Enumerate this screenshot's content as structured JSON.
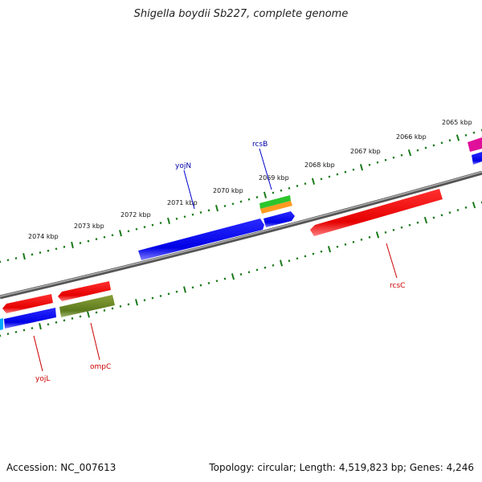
{
  "title": "Shigella boydii Sb227, complete genome",
  "accession_text": "Accession: NC_007613",
  "summary_text": "Topology: circular; Length: 4,519,823 bp; Genes: 4,246",
  "colors": {
    "backbone": "#808080",
    "tick": "#1a7a1a",
    "forward_label": "#0000aa",
    "reverse_label": "#cc0000"
  },
  "kbp_labels": [
    "2074 kbp",
    "2073 kbp",
    "2072 kbp",
    "2071 kbp",
    "2070 kbp",
    "2069 kbp",
    "2068 kbp",
    "2067 kbp",
    "2066 kbp",
    "2065 kbp"
  ],
  "gene_labels": {
    "yojN": "yojN",
    "rcsB": "rcsB",
    "rcsC": "rcsC",
    "ompC": "ompC",
    "yojL": "yojL"
  }
}
